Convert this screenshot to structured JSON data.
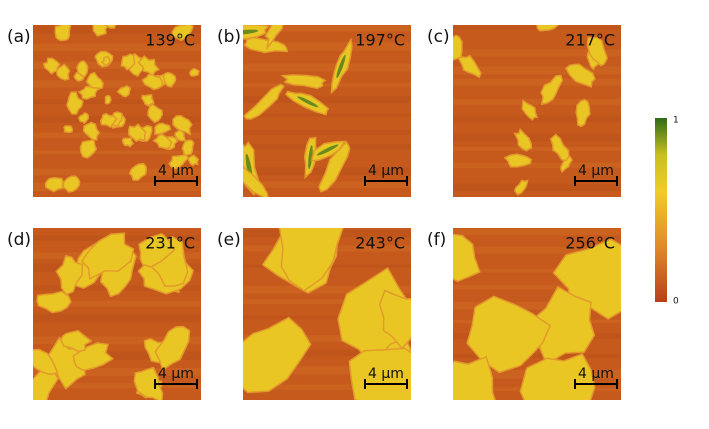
{
  "panels": [
    {
      "label": "(a)",
      "temperature": "139°C",
      "scale_bar": "4 μm"
    },
    {
      "label": "(b)",
      "temperature": "197°C",
      "scale_bar": "4 μm"
    },
    {
      "label": "(c)",
      "temperature": "217°C",
      "scale_bar": "4 μm"
    },
    {
      "label": "(d)",
      "temperature": "231°C",
      "scale_bar": "4 μm"
    },
    {
      "label": "(e)",
      "temperature": "243°C",
      "scale_bar": "4 μm"
    },
    {
      "label": "(f)",
      "temperature": "256°C",
      "scale_bar": "4 μm"
    }
  ],
  "colorbar": {
    "max": 1,
    "min": 0
  }
}
